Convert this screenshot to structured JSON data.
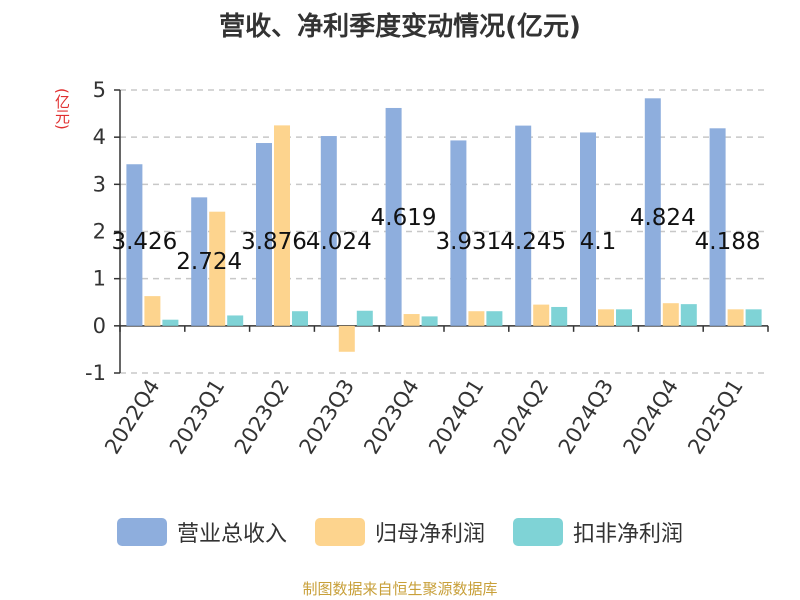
{
  "title": "营收、净利季度变动情况(亿元)",
  "source": "制图数据来自恒生聚源数据库",
  "colors": {
    "revenue": "#8eaedd",
    "net_profit": "#fdd48e",
    "deducted_profit": "#7fd3d6",
    "ylabel": "#e03030",
    "grid": "#c8c8c8",
    "axis": "#333333",
    "source": "#c8a03a"
  },
  "chart_data": {
    "type": "bar",
    "title": "营收、净利季度变动情况(亿元)",
    "ylabel": "(亿元)",
    "xlabel": "",
    "ylim": [
      -1,
      5
    ],
    "yticks": [
      -1,
      0,
      1,
      2,
      3,
      4,
      5
    ],
    "grid": true,
    "legend_position": "bottom",
    "categories": [
      "2022Q4",
      "2023Q1",
      "2023Q2",
      "2023Q3",
      "2023Q4",
      "2024Q1",
      "2024Q2",
      "2024Q3",
      "2024Q4",
      "2025Q1"
    ],
    "series": [
      {
        "name": "营业总收入",
        "values": [
          3.426,
          2.724,
          3.876,
          4.024,
          4.619,
          3.931,
          4.245,
          4.1,
          4.824,
          4.188
        ]
      },
      {
        "name": "归母净利润",
        "values": [
          0.63,
          2.42,
          4.25,
          -0.55,
          0.25,
          0.31,
          0.45,
          0.35,
          0.48,
          0.35
        ]
      },
      {
        "name": "扣非净利润",
        "values": [
          0.13,
          0.22,
          0.31,
          0.32,
          0.2,
          0.31,
          0.4,
          0.35,
          0.46,
          0.35
        ]
      }
    ],
    "data_labels": [
      "3.426",
      "2.724",
      "3.876",
      "4.024",
      "4.619",
      "3.931",
      "4.245",
      "4.1",
      "4.824",
      "4.188"
    ]
  }
}
